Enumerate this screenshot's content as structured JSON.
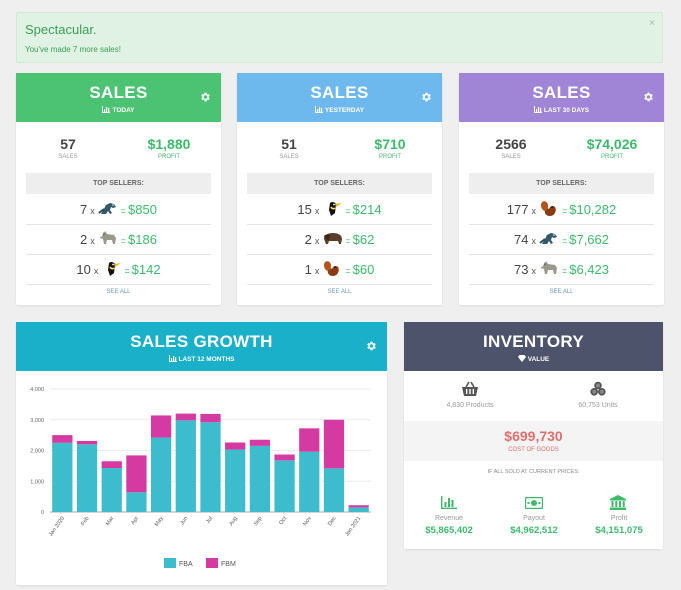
{
  "alert": {
    "title": "Spectacular.",
    "message": "You've made 7 more sales!",
    "close": "×"
  },
  "cards": [
    {
      "title": "SALES",
      "subtitle": "TODAY",
      "color": "#4bc372",
      "sales": "57",
      "sales_label": "SALES",
      "profit": "$1,880",
      "profit_label": "PROFIT",
      "top_label": "TOP SELLERS:",
      "rows": [
        {
          "qty": "7",
          "icon": "dinosaur-icon",
          "value": "$850"
        },
        {
          "qty": "2",
          "icon": "wolf-icon",
          "value": "$186"
        },
        {
          "qty": "10",
          "icon": "toucan-icon",
          "value": "$142"
        }
      ],
      "see_all": "SEE ALL"
    },
    {
      "title": "SALES",
      "subtitle": "YESTERDAY",
      "color": "#6db8ec",
      "sales": "51",
      "sales_label": "SALES",
      "profit": "$710",
      "profit_label": "PROFIT",
      "top_label": "TOP SELLERS:",
      "rows": [
        {
          "qty": "15",
          "icon": "toucan-icon",
          "value": "$214"
        },
        {
          "qty": "2",
          "icon": "bison-icon",
          "value": "$62"
        },
        {
          "qty": "1",
          "icon": "squirrel-icon",
          "value": "$60"
        }
      ],
      "see_all": "SEE ALL"
    },
    {
      "title": "SALES",
      "subtitle": "LAST 30 DAYS",
      "color": "#a084d6",
      "sales": "2566",
      "sales_label": "SALES",
      "profit": "$74,026",
      "profit_label": "PROFIT",
      "top_label": "TOP SELLERS:",
      "rows": [
        {
          "qty": "177",
          "icon": "squirrel-icon",
          "value": "$10,282"
        },
        {
          "qty": "74",
          "icon": "dinosaur-icon",
          "value": "$7,662"
        },
        {
          "qty": "73",
          "icon": "wolf-icon",
          "value": "$6,423"
        }
      ],
      "see_all": "SEE ALL"
    }
  ],
  "growth": {
    "title": "SALES GROWTH",
    "subtitle": "LAST 12 MONTHS"
  },
  "inventory": {
    "title": "INVENTORY",
    "subtitle": "VALUE",
    "products": "4,830 Products",
    "units": "60,753 Units",
    "cost": "$699,730",
    "cost_label": "COST OF GOODS",
    "all_sold": "IF ALL SOLD AT CURRENT PRICES:",
    "revenue_label": "Revenue",
    "revenue": "$5,865,402",
    "payout_label": "Payout",
    "payout": "$4,962,512",
    "profit_label": "Profit",
    "profit": "$4,151,075"
  },
  "chart_data": {
    "type": "bar",
    "stacked": true,
    "categories": [
      "Jan 2020",
      "Feb",
      "Mar",
      "Apr",
      "May",
      "Jun",
      "Jul",
      "Aug",
      "Sep",
      "Oct",
      "Nov",
      "Dec",
      "Jan 2021"
    ],
    "series": [
      {
        "name": "FBA",
        "color": "#3cbccc",
        "values": [
          2250,
          2200,
          1430,
          640,
          2420,
          2980,
          2920,
          2030,
          2150,
          1680,
          1960,
          1420,
          150
        ]
      },
      {
        "name": "FBM",
        "color": "#d43aa1",
        "values": [
          250,
          110,
          220,
          1200,
          720,
          220,
          270,
          230,
          200,
          190,
          760,
          1580,
          70
        ]
      }
    ],
    "yticks": [
      "0",
      "1,000",
      "2,000",
      "3,000",
      "4,000"
    ],
    "ylim": [
      0,
      4000
    ],
    "grid": true,
    "legend": "bottom"
  }
}
